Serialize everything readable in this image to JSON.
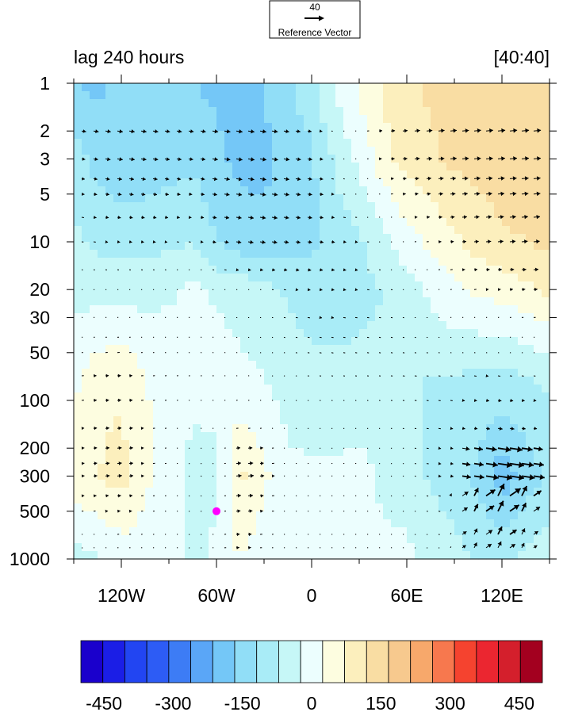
{
  "chart_data": {
    "type": "heatmap",
    "title_left": "lag 240 hours",
    "title_right": "[40:40]",
    "reference_vector": {
      "magnitude_label": "40",
      "label": "Reference Vector"
    },
    "x_axis": {
      "min": -150,
      "max": 150,
      "tick_values": [
        -120,
        -60,
        0,
        60,
        120
      ],
      "tick_labels": [
        "120W",
        "60W",
        "0",
        "60E",
        "120E"
      ],
      "minor_ticks": [
        -150,
        -90,
        -30,
        30,
        90,
        150
      ]
    },
    "y_axis": {
      "scale": "log",
      "reversed": true,
      "units": "hPa",
      "min": 1,
      "max": 1000,
      "tick_values": [
        1,
        2,
        3,
        5,
        10,
        20,
        30,
        50,
        100,
        200,
        300,
        500,
        1000
      ],
      "tick_labels": [
        "1",
        "2",
        "3",
        "5",
        "10",
        "20",
        "30",
        "50",
        "100",
        "200",
        "300",
        "500",
        "1000"
      ]
    },
    "grid": false,
    "colorbar": {
      "orientation": "horizontal",
      "colors": [
        "#1a00cc",
        "#1b1ee6",
        "#2245f2",
        "#2d5cf5",
        "#3d7cf5",
        "#5aa6f7",
        "#74c7f7",
        "#91def7",
        "#a9ecf7",
        "#c6f7f7",
        "#ecfefe",
        "#fdfde0",
        "#fcefbd",
        "#f9dda3",
        "#f7c98e",
        "#f7a86b",
        "#f7784e",
        "#f5432f",
        "#eb2630",
        "#d41f2c",
        "#a3001f"
      ],
      "boundaries": [
        -500,
        -450,
        -400,
        -350,
        -300,
        -250,
        -200,
        -150,
        -100,
        -50,
        0,
        50,
        100,
        150,
        200,
        250,
        300,
        350,
        400,
        450,
        500
      ],
      "tick_values": [
        -450,
        -300,
        -150,
        0,
        150,
        300,
        450
      ],
      "tick_labels": [
        "-450",
        "-300",
        "-150",
        "0",
        "150",
        "300",
        "450"
      ]
    },
    "field_levels": [
      {
        "lon": -150,
        "levels": [
          1,
          3,
          10,
          20,
          70,
          400,
          1000
        ],
        "values": [
          -150,
          -75,
          -40,
          -20,
          40,
          60,
          -20
        ]
      },
      {
        "lon": -135,
        "levels": [
          1,
          3,
          10,
          20,
          70,
          300,
          1000
        ],
        "values": [
          -160,
          -120,
          -60,
          -20,
          80,
          100,
          -10
        ]
      },
      {
        "lon": -120,
        "levels": [
          1,
          3,
          10,
          20,
          70,
          300,
          1000
        ],
        "values": [
          -140,
          -140,
          -70,
          -20,
          90,
          120,
          20
        ]
      },
      {
        "lon": -105,
        "levels": [
          1,
          3,
          10,
          20,
          70,
          300,
          1000
        ],
        "values": [
          -140,
          -130,
          -70,
          -20,
          50,
          60,
          20
        ]
      },
      {
        "lon": -90,
        "levels": [
          1,
          3,
          10,
          20,
          70,
          300,
          1000
        ],
        "values": [
          -140,
          -120,
          -60,
          -10,
          40,
          30,
          20
        ]
      },
      {
        "lon": -75,
        "levels": [
          1,
          3,
          10,
          20,
          70,
          300,
          1000
        ],
        "values": [
          -150,
          -110,
          -50,
          10,
          30,
          -30,
          -20
        ]
      },
      {
        "lon": -60,
        "levels": [
          1,
          3,
          10,
          20,
          70,
          300,
          1000
        ],
        "values": [
          -160,
          -140,
          -100,
          -10,
          30,
          -20,
          20
        ]
      },
      {
        "lon": -45,
        "levels": [
          1,
          3,
          10,
          20,
          70,
          300,
          1000
        ],
        "values": [
          -160,
          -160,
          -130,
          -20,
          10,
          110,
          50
        ]
      },
      {
        "lon": -30,
        "levels": [
          1,
          3,
          10,
          20,
          70,
          300,
          1000
        ],
        "values": [
          -150,
          -160,
          -140,
          -30,
          0,
          60,
          20
        ]
      },
      {
        "lon": -15,
        "levels": [
          1,
          3,
          10,
          20,
          70,
          300,
          1000
        ],
        "values": [
          -110,
          -140,
          -120,
          -60,
          -20,
          10,
          10
        ]
      },
      {
        "lon": 0,
        "levels": [
          1,
          3,
          10,
          20,
          70,
          300,
          1000
        ],
        "values": [
          -60,
          -110,
          -110,
          -70,
          -40,
          10,
          10
        ]
      },
      {
        "lon": 15,
        "levels": [
          1,
          3,
          10,
          20,
          70,
          300,
          1000
        ],
        "values": [
          10,
          -40,
          -80,
          -70,
          -40,
          10,
          10
        ]
      },
      {
        "lon": 30,
        "levels": [
          1,
          3,
          10,
          20,
          70,
          300,
          1000
        ],
        "values": [
          60,
          10,
          -60,
          -60,
          -40,
          20,
          10
        ]
      },
      {
        "lon": 45,
        "levels": [
          1,
          3,
          10,
          20,
          70,
          300,
          1000
        ],
        "values": [
          110,
          80,
          -20,
          -50,
          -40,
          -10,
          10
        ]
      },
      {
        "lon": 60,
        "levels": [
          1,
          3,
          10,
          20,
          70,
          300,
          1000
        ],
        "values": [
          140,
          120,
          30,
          -20,
          -50,
          -20,
          10
        ]
      },
      {
        "lon": 75,
        "levels": [
          1,
          3,
          10,
          20,
          70,
          300,
          1000
        ],
        "values": [
          160,
          140,
          60,
          10,
          -50,
          -60,
          -10
        ]
      },
      {
        "lon": 90,
        "levels": [
          1,
          3,
          10,
          20,
          70,
          300,
          1000
        ],
        "values": [
          170,
          160,
          90,
          40,
          -50,
          -80,
          -30
        ]
      },
      {
        "lon": 105,
        "levels": [
          1,
          3,
          10,
          20,
          70,
          300,
          1000
        ],
        "values": [
          180,
          170,
          120,
          60,
          -60,
          -110,
          -60
        ]
      },
      {
        "lon": 120,
        "levels": [
          1,
          3,
          10,
          20,
          70,
          300,
          1000
        ],
        "values": [
          190,
          180,
          140,
          70,
          -60,
          -180,
          -60
        ]
      },
      {
        "lon": 135,
        "levels": [
          1,
          3,
          10,
          20,
          70,
          300,
          1000
        ],
        "values": [
          190,
          180,
          150,
          90,
          -50,
          -130,
          -40
        ]
      },
      {
        "lon": 150,
        "levels": [
          1,
          3,
          10,
          20,
          70,
          300,
          1000
        ],
        "values": [
          190,
          180,
          160,
          110,
          -40,
          -90,
          -20
        ]
      }
    ],
    "marker": {
      "lon": -60,
      "pressure": 500,
      "color": "#ff00ff"
    }
  }
}
